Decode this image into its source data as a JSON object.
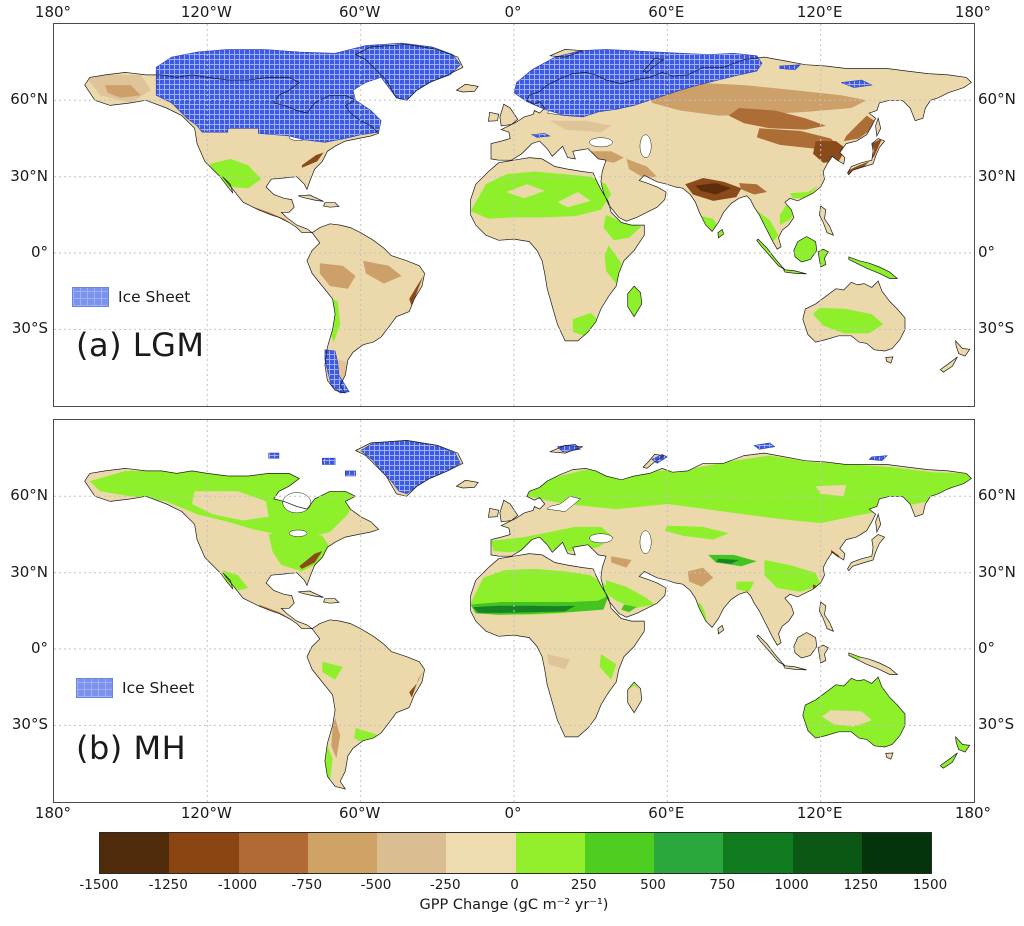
{
  "figure": {
    "panels": [
      {
        "id": "a",
        "label": "(a) LGM",
        "legend_label": "Ice Sheet"
      },
      {
        "id": "b",
        "label": "(b) MH",
        "legend_label": "Ice Sheet"
      }
    ],
    "axes": {
      "lon_ticks": [
        "180°",
        "120°W",
        "60°W",
        "0°",
        "60°E",
        "120°E",
        "180°"
      ],
      "lat_ticks": [
        "60°N",
        "30°N",
        "0°",
        "30°S"
      ]
    },
    "colorbar": {
      "label": "GPP Change (gC m⁻² yr⁻¹)",
      "tick_labels": [
        "-1500",
        "-1250",
        "-1000",
        "-750",
        "-500",
        "-250",
        "0",
        "250",
        "500",
        "750",
        "1000",
        "1250",
        "1500"
      ],
      "segment_colors": [
        "#4f2a0b",
        "#8a4513",
        "#b16a33",
        "#cfa265",
        "#dbbd92",
        "#eedcb0",
        "#93ef2c",
        "#4fce22",
        "#2ba83c",
        "#117b20",
        "#0b5716",
        "#05330c"
      ]
    },
    "map_colors": {
      "ocean": "#ffffff",
      "land": "#ecd9ab",
      "coast": "#1c1c1c",
      "border": "#9a9a9a",
      "grid": "#c2c2c2",
      "ice_fill": "#3c5ae6",
      "ice_grid": "#9fb0f4",
      "ice_edge": "#2b3db0",
      "ltan": "#dfc49a",
      "mid": "#cda06a",
      "dark": "#ad6d36",
      "vdark": "#8a4a1a",
      "deep": "#5e2d0c",
      "tan": "#ecd9ab",
      "grn": "#8df02a",
      "gmid": "#43c41e",
      "gdark": "#178226"
    }
  },
  "chart_data": {
    "type": "heatmap",
    "variable": "GPP Change (gC m⁻² yr⁻¹)",
    "scale": {
      "min": -1500,
      "max": 1500,
      "step": 250,
      "negative_palette": "browns",
      "positive_palette": "greens"
    },
    "panels": [
      {
        "name": "(a) LGM",
        "ice_sheets": [
          "Laurentide (Canada & northern USA)",
          "Greenland",
          "Fennoscandia & Barents-Kara",
          "Patagonia",
          "small Siberian patches"
        ],
        "negative_regions": [
          "most of Eurasia (moderate browns)",
          "northern India / Himalaya front (strongest)",
          "Mongolia & northeast China & Korea & Japan",
          "Anatolia & Zagros",
          "western Amazon",
          "southern Mexico & Central America",
          "eastern Brazil coast",
          "Alaska interior"
        ],
        "positive_regions": [
          "Sahara & northern Africa band",
          "Horn of Africa & east African coast",
          "southeastern Africa & Madagascar",
          "southwestern USA & northern Mexico",
          "southern India & Sri Lanka",
          "Southeast Asia & Indonesia & New Guinea",
          "southern China coast",
          "interior Australia",
          "Andes strip"
        ]
      },
      {
        "name": "(b) MH",
        "ice_sheets": [
          "Greenland",
          "scattered Arctic island patches"
        ],
        "positive_regions": [
          "boreal North America & Alaska",
          "eastern USA",
          "boreal Eurasia / Siberia (extensive)",
          "Europe",
          "green Sahara with strongest dark-green Sahel band",
          "Arabia",
          "central Asia",
          "Tibetan Plateau (dark green)",
          "southeastern China",
          "Australia (except center)",
          "Pampas & southern Chile",
          "New Zealand"
        ],
        "negative_regions": [
          "central Canada & Great Plains (neutral tan)",
          "central Asian steppe band",
          "northwest India / Pakistan (brown)",
          "Mesopotamia",
          "southeast USA coast (dark)",
          "eastern Brazil coast (dark)",
          "Andes strip"
        ]
      }
    ]
  }
}
